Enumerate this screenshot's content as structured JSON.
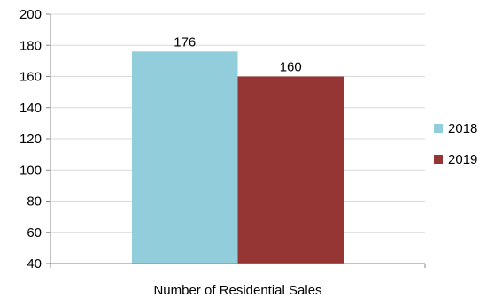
{
  "chart_data": {
    "type": "bar",
    "categories": [
      "Number of Residential Sales"
    ],
    "series": [
      {
        "name": "2018",
        "values": [
          176
        ],
        "color": "#92CDDC"
      },
      {
        "name": "2019",
        "values": [
          160
        ],
        "color": "#963634"
      }
    ],
    "title": "",
    "xlabel": "",
    "ylabel": "",
    "ylim": [
      40,
      200
    ],
    "yticks": [
      40,
      60,
      80,
      100,
      120,
      140,
      160,
      180,
      200
    ],
    "grid": true,
    "legend_position": "right",
    "data_labels": true
  }
}
